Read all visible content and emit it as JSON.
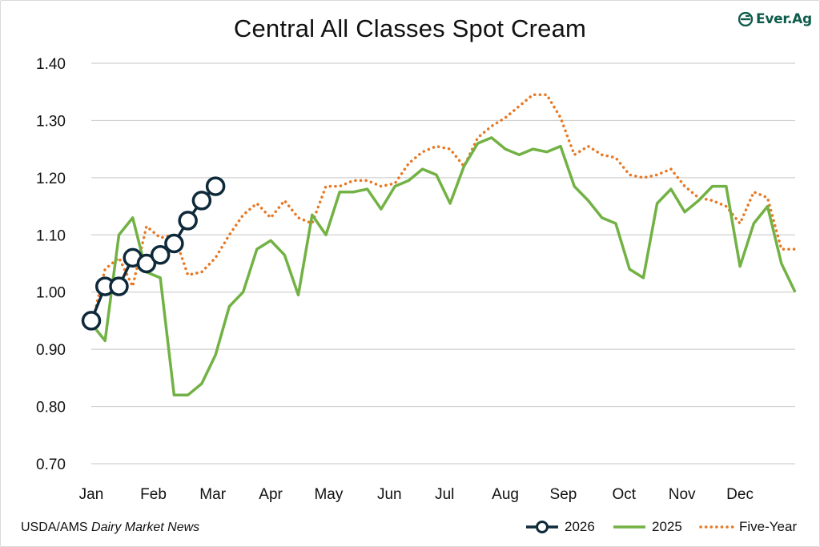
{
  "chart_data": {
    "type": "line",
    "title": "Central All Classes Spot Cream",
    "xlabel": "",
    "ylabel": "",
    "ylim": [
      0.7,
      1.4
    ],
    "yticks": [
      "0.70",
      "0.80",
      "0.90",
      "1.00",
      "1.10",
      "1.20",
      "1.30",
      "1.40"
    ],
    "ytick_values": [
      0.7,
      0.8,
      0.9,
      1.0,
      1.1,
      1.2,
      1.3,
      1.4
    ],
    "x_unit": "week of year",
    "xlim": [
      1,
      52
    ],
    "month_labels": [
      "Jan",
      "Feb",
      "Mar",
      "Apr",
      "May",
      "Jun",
      "Jul",
      "Aug",
      "Sep",
      "Oct",
      "Nov",
      "Dec"
    ],
    "month_positions": [
      1,
      5.5,
      9.8,
      14,
      18.2,
      22.6,
      26.6,
      31,
      35.2,
      39.6,
      43.8,
      48
    ],
    "grid": true,
    "legend_position": "bottom-right",
    "series": [
      {
        "name": "2026",
        "color": "#0e2a3a",
        "style": "line-markers",
        "x": [
          1,
          2,
          3,
          4,
          5,
          6,
          7,
          8,
          9,
          10
        ],
        "values": [
          0.95,
          1.01,
          1.01,
          1.06,
          1.05,
          1.065,
          1.085,
          1.125,
          1.16,
          1.185
        ]
      },
      {
        "name": "2025",
        "color": "#72b244",
        "style": "solid",
        "x": [
          1,
          2,
          3,
          4,
          5,
          6,
          7,
          8,
          9,
          10,
          11,
          12,
          13,
          14,
          15,
          16,
          17,
          18,
          19,
          20,
          21,
          22,
          23,
          24,
          25,
          26,
          27,
          28,
          29,
          30,
          31,
          32,
          33,
          34,
          35,
          36,
          37,
          38,
          39,
          40,
          41,
          42,
          43,
          44,
          45,
          46,
          47,
          48,
          49,
          50,
          51,
          52
        ],
        "values": [
          0.945,
          0.915,
          1.1,
          1.13,
          1.035,
          1.025,
          0.82,
          0.82,
          0.84,
          0.89,
          0.975,
          1.0,
          1.075,
          1.09,
          1.065,
          0.995,
          1.135,
          1.1,
          1.175,
          1.175,
          1.18,
          1.145,
          1.185,
          1.195,
          1.215,
          1.205,
          1.155,
          1.22,
          1.26,
          1.27,
          1.25,
          1.24,
          1.25,
          1.245,
          1.255,
          1.185,
          1.16,
          1.13,
          1.12,
          1.04,
          1.025,
          1.155,
          1.18,
          1.14,
          1.16,
          1.185,
          1.185,
          1.045,
          1.12,
          1.15,
          1.05,
          1.0
        ]
      },
      {
        "name": "Five-Year",
        "color": "#e87722",
        "style": "dotted",
        "x": [
          1,
          2,
          3,
          4,
          5,
          6,
          7,
          8,
          9,
          10,
          11,
          12,
          13,
          14,
          15,
          16,
          17,
          18,
          19,
          20,
          21,
          22,
          23,
          24,
          25,
          26,
          27,
          28,
          29,
          30,
          31,
          32,
          33,
          34,
          35,
          36,
          37,
          38,
          39,
          40,
          41,
          42,
          43,
          44,
          45,
          46,
          47,
          48,
          49,
          50,
          51,
          52
        ],
        "values": [
          0.94,
          1.04,
          1.06,
          1.01,
          1.115,
          1.095,
          1.1,
          1.03,
          1.035,
          1.06,
          1.1,
          1.135,
          1.155,
          1.13,
          1.16,
          1.13,
          1.12,
          1.185,
          1.185,
          1.195,
          1.195,
          1.185,
          1.19,
          1.225,
          1.245,
          1.255,
          1.25,
          1.22,
          1.27,
          1.29,
          1.305,
          1.325,
          1.345,
          1.345,
          1.305,
          1.24,
          1.255,
          1.24,
          1.235,
          1.205,
          1.2,
          1.205,
          1.215,
          1.185,
          1.165,
          1.16,
          1.15,
          1.12,
          1.175,
          1.165,
          1.075,
          1.075
        ]
      }
    ]
  },
  "brand": {
    "name": "Ever.Ag"
  },
  "source": {
    "prefix": "USDA/AMS ",
    "italic": "Dairy Market News"
  },
  "legend": {
    "items": [
      "2026",
      "2025",
      "Five-Year"
    ]
  }
}
